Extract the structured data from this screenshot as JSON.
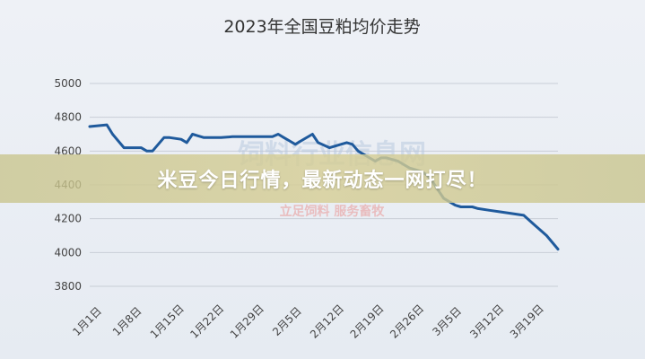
{
  "banner": {
    "text": "米豆今日行情，最新动态一网打尽！"
  },
  "watermark": {
    "main": "饲料行业信息网",
    "sub": "立足饲料  服务畜牧"
  },
  "colors": {
    "line": "#1f5a9c",
    "grid": "#c9ced6",
    "banner": "#cfc994"
  },
  "chart_data": {
    "type": "line",
    "title": "2023年全国豆粕均价走势",
    "xlabel": "",
    "ylabel": "",
    "ylim": [
      3800,
      5000
    ],
    "yticks": [
      3800,
      4000,
      4200,
      4400,
      4600,
      4800,
      5000
    ],
    "grid": true,
    "x_ticks": [
      "1月1日",
      "1月8日",
      "1月15日",
      "1月22日",
      "1月29日",
      "2月5日",
      "2月12日",
      "2月19日",
      "2月26日",
      "3月5日",
      "3月12日",
      "3月19日"
    ],
    "x_tick_day_index": [
      0,
      7,
      14,
      21,
      28,
      35,
      42,
      49,
      56,
      63,
      70,
      77
    ],
    "series": [
      {
        "day_index": [
          0,
          3,
          4,
          6,
          7,
          9,
          10,
          11,
          12,
          13,
          14,
          16,
          17,
          18,
          19,
          20,
          21,
          22,
          23,
          25,
          28,
          30,
          32,
          33,
          34,
          35,
          36,
          37,
          39,
          40,
          42,
          44,
          45,
          46,
          47,
          49,
          50,
          51,
          52,
          54,
          55,
          56,
          58,
          59,
          60,
          61,
          62,
          64,
          65,
          67,
          68,
          70,
          72,
          74,
          76,
          78,
          80,
          82
        ],
        "values": [
          4745,
          4755,
          4700,
          4620,
          4620,
          4620,
          4600,
          4600,
          4640,
          4680,
          4680,
          4670,
          4650,
          4700,
          4690,
          4680,
          4680,
          4680,
          4680,
          4685,
          4685,
          4685,
          4685,
          4700,
          4680,
          4660,
          4640,
          4660,
          4700,
          4650,
          4620,
          4640,
          4650,
          4640,
          4600,
          4560,
          4540,
          4560,
          4560,
          4540,
          4520,
          4500,
          4480,
          4460,
          4420,
          4370,
          4320,
          4280,
          4270,
          4270,
          4260,
          4250,
          4240,
          4230,
          4220,
          4160,
          4100,
          4020
        ]
      }
    ]
  }
}
